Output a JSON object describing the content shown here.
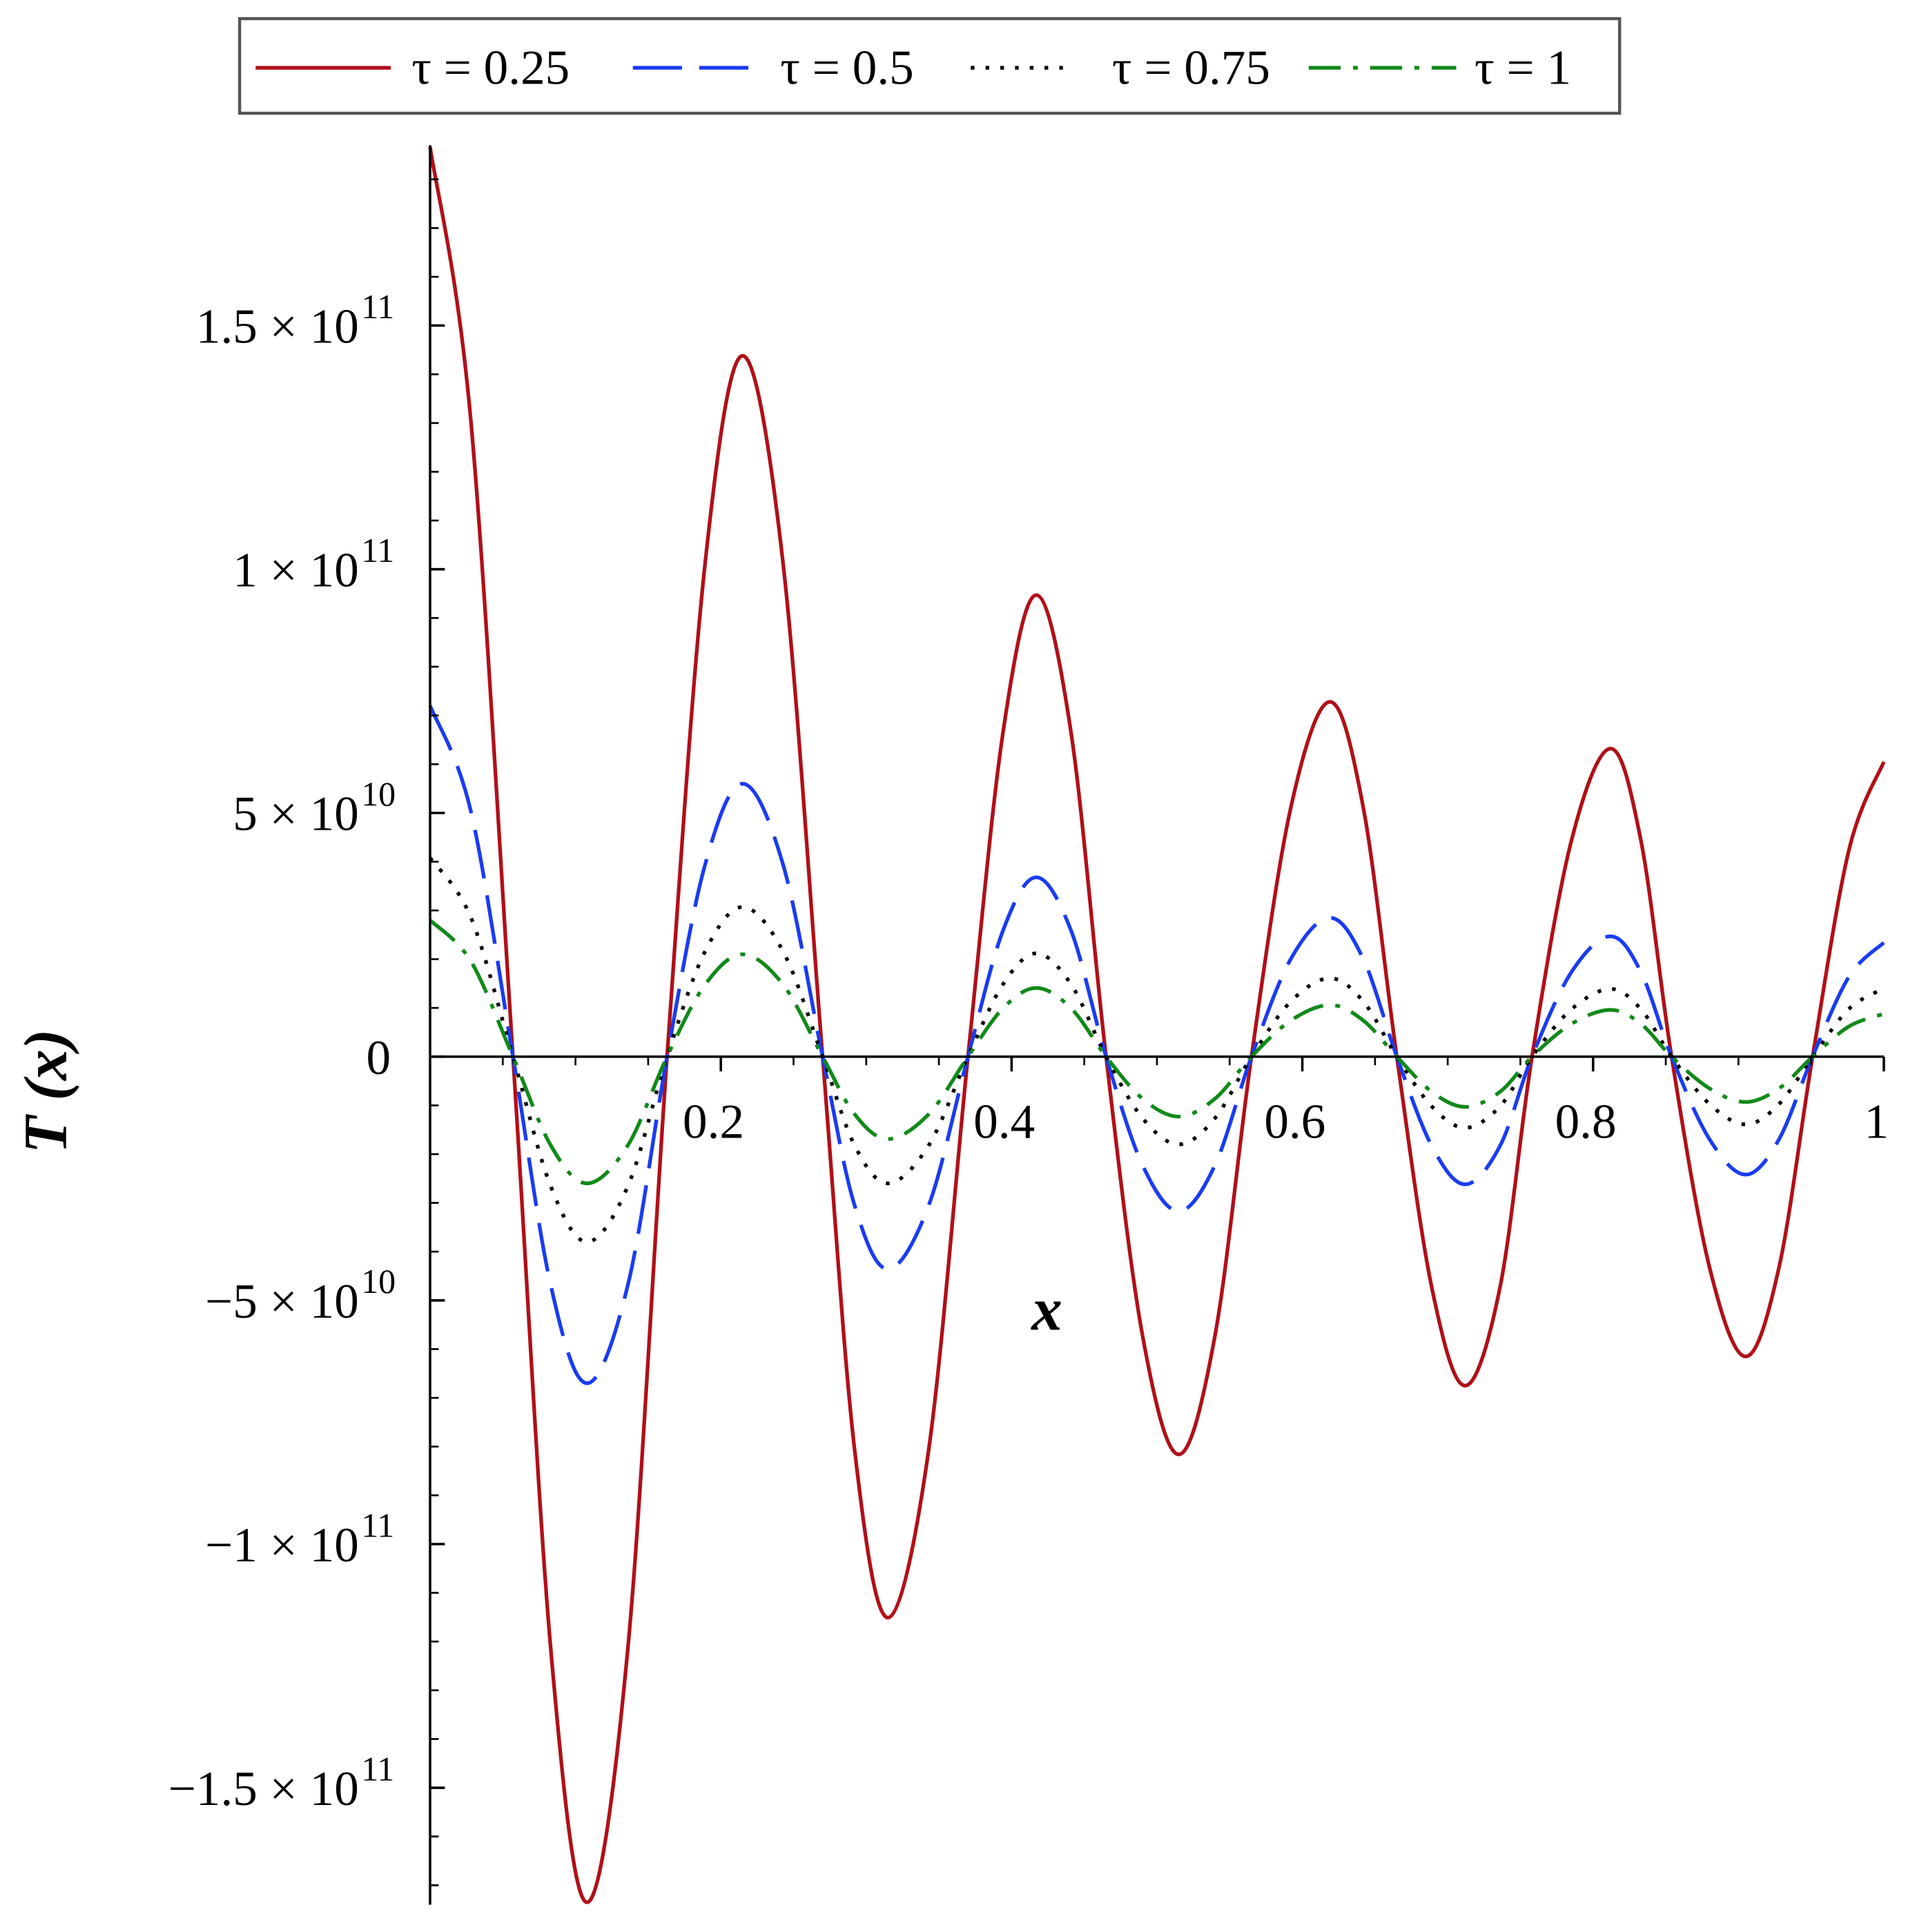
{
  "chart_data": {
    "type": "line",
    "x_label": "x",
    "y_label": "T (x)",
    "xlim": [
      0,
      1
    ],
    "ylim": [
      -174000000000.0,
      187000000000.0
    ],
    "xticks": [
      0.2,
      0.4,
      0.6,
      0.8,
      1
    ],
    "yticks": [
      {
        "value": -150000000000.0,
        "label": "−1.5 × 10",
        "exponent": "11"
      },
      {
        "value": -100000000000.0,
        "label": "−1 × 10",
        "exponent": "11"
      },
      {
        "value": -50000000000.0,
        "label": "−5 × 10",
        "exponent": "10"
      },
      0,
      {
        "value": 50000000000.0,
        "label": "5 × 10",
        "exponent": "10"
      },
      {
        "value": 100000000000.0,
        "label": "1 × 10",
        "exponent": "11"
      },
      {
        "value": 150000000000.0,
        "label": "1.5 × 10",
        "exponent": "11"
      }
    ],
    "grid": false,
    "legend": "top",
    "x": [
      0,
      0.028,
      0.057,
      0.083,
      0.108,
      0.136,
      0.163,
      0.189,
      0.215,
      0.243,
      0.27,
      0.292,
      0.315,
      0.343,
      0.37,
      0.394,
      0.417,
      0.441,
      0.465,
      0.49,
      0.515,
      0.54,
      0.565,
      0.592,
      0.619,
      0.642,
      0.665,
      0.689,
      0.712,
      0.736,
      0.758,
      0.785,
      0.812,
      0.833,
      0.854,
      0.88,
      0.905,
      0.928,
      0.951,
      0.976,
      1.0
    ],
    "series": [
      {
        "name": "τ = 0.25",
        "color": "#b01018",
        "style": "solid",
        "values": [
          186600000000.0,
          130600000000.0,
          0,
          -121500000000.0,
          -173500000000.0,
          -121500000000.0,
          0,
          100700000000.0,
          143800000000.0,
          100700000000.0,
          0,
          -80600000000.0,
          -115100000000.0,
          -80600000000.0,
          0,
          66300000000.0,
          94700000000.0,
          66300000000.0,
          0,
          -57100000000.0,
          -81600000000.0,
          -57100000000.0,
          0,
          51000000000.0,
          72800000000.0,
          51000000000.0,
          0,
          -47300000000.0,
          -67500000000.0,
          -47300000000.0,
          0,
          44200000000.0,
          63200000000.0,
          44200000000.0,
          0,
          -43100000000.0,
          -61500000000.0,
          -43100000000.0,
          0,
          42400000000.0,
          60500000000.0
        ]
      },
      {
        "name": "τ = 0.5",
        "color": "#1a3cf0",
        "style": "dashed",
        "values": [
          72000000000.0,
          50400000000.0,
          0,
          -46900000000.0,
          -67000000000.0,
          -46900000000.0,
          0,
          39200000000.0,
          56000000000.0,
          39200000000.0,
          0,
          -30500000000.0,
          -43600000000.0,
          -30500000000.0,
          0,
          25800000000.0,
          36800000000.0,
          25800000000.0,
          0,
          -22200000000.0,
          -31700000000.0,
          -22200000000.0,
          0,
          20000000000.0,
          28500000000.0,
          20000000000.0,
          0,
          -18300000000.0,
          -26200000000.0,
          -18300000000.0,
          0,
          17300000000.0,
          24700000000.0,
          17300000000.0,
          0,
          -16900000000.0,
          -24200000000.0,
          -16900000000.0,
          0,
          16400000000.0,
          23400000000.0
        ]
      },
      {
        "name": "τ = 0.75",
        "color": "#000000",
        "style": "dotted",
        "values": [
          40800000000.0,
          28600000000.0,
          0,
          -26600000000.0,
          -38000000000.0,
          -26600000000.0,
          0,
          21500000000.0,
          30700000000.0,
          21500000000.0,
          0,
          -18200000000.0,
          -26000000000.0,
          -18200000000.0,
          0,
          14800000000.0,
          21200000000.0,
          14800000000.0,
          0,
          -12600000000.0,
          -18000000000.0,
          -12600000000.0,
          0,
          11300000000.0,
          16100000000.0,
          11300000000.0,
          0,
          -10200000000.0,
          -14600000000.0,
          -10200000000.0,
          0,
          9700000000.0,
          13900000000.0,
          9700000000.0,
          0,
          -9700000000.0,
          -13900000000.0,
          -9700000000.0,
          0,
          9800000000.0,
          14000000000.0
        ]
      },
      {
        "name": "τ = 1",
        "color": "#108a18",
        "style": "dashdot",
        "values": [
          28000000000.0,
          19600000000.0,
          0,
          -18200000000.0,
          -26000000000.0,
          -18200000000.0,
          0,
          14700000000.0,
          21000000000.0,
          14700000000.0,
          0,
          -11800000000.0,
          -16900000000.0,
          -11800000000.0,
          0,
          9900000000.0,
          14100000000.0,
          9900000000.0,
          0,
          -8600000000.0,
          -12300000000.0,
          -8600000000.0,
          0,
          7400000000.0,
          10600000000.0,
          7400000000.0,
          0,
          -7200000000.0,
          -10300000000.0,
          -7200000000.0,
          0,
          6700000000.0,
          9600000000.0,
          6700000000.0,
          0,
          -6500000000.0,
          -9300000000.0,
          -6500000000.0,
          0,
          6200000000.0,
          8800000000.0
        ]
      }
    ]
  }
}
